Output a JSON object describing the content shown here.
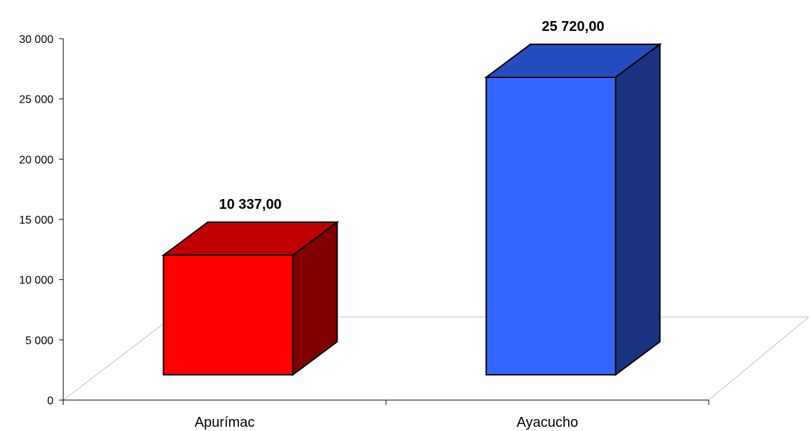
{
  "chart_data": {
    "type": "bar",
    "categories": [
      "Apurímac",
      "Ayacucho"
    ],
    "values": [
      10337,
      25720
    ],
    "data_labels": [
      "10 337,00",
      "25 720,00"
    ],
    "colors": [
      "#ff0000",
      "#3366ff"
    ],
    "ylim": [
      0,
      30000
    ],
    "yticks": [
      0,
      5000,
      10000,
      15000,
      20000,
      25000,
      30000
    ],
    "ytick_labels": [
      "0",
      "5 000",
      "10 000",
      "15 000",
      "20 000",
      "25 000",
      "30 000"
    ],
    "grid": false,
    "legend": "none",
    "style": "3d-column"
  }
}
